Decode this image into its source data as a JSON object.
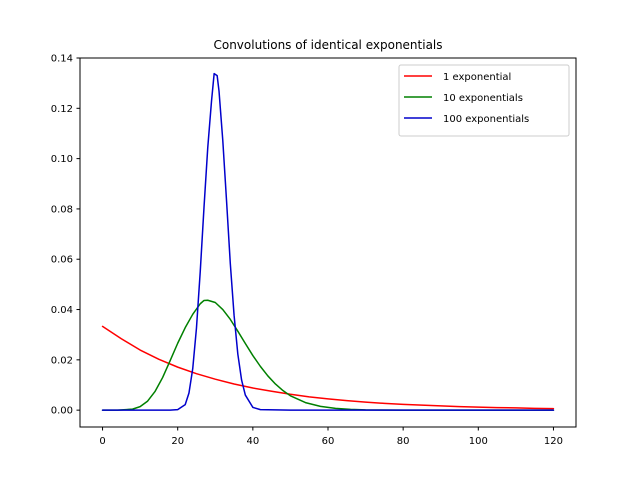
{
  "chart_data": {
    "type": "line",
    "title": "Convolutions of identical exponentials",
    "xlabel": "",
    "ylabel": "",
    "xlim": [
      -6,
      126
    ],
    "ylim": [
      -0.0067,
      0.14
    ],
    "x_ticks": [
      0,
      20,
      40,
      60,
      80,
      100,
      120
    ],
    "y_ticks": [
      0.0,
      0.02,
      0.04,
      0.06,
      0.08,
      0.1,
      0.12,
      0.14
    ],
    "x_tick_labels": [
      "0",
      "20",
      "40",
      "60",
      "80",
      "100",
      "120"
    ],
    "y_tick_labels": [
      "0.00",
      "0.02",
      "0.04",
      "0.06",
      "0.08",
      "0.10",
      "0.12",
      "0.14"
    ],
    "grid": false,
    "legend_position": "top-right",
    "series": [
      {
        "name": "1 exponential",
        "color": "#ff0000",
        "x": [
          0,
          5,
          10,
          15,
          20,
          25,
          30,
          35,
          40,
          45,
          50,
          55,
          60,
          65,
          70,
          75,
          80,
          85,
          90,
          95,
          100,
          105,
          110,
          115,
          120
        ],
        "y": [
          0.0333,
          0.0284,
          0.0239,
          0.0202,
          0.0171,
          0.0145,
          0.0123,
          0.0104,
          0.0088,
          0.0075,
          0.0063,
          0.0053,
          0.0045,
          0.0038,
          0.0032,
          0.0027,
          0.0023,
          0.002,
          0.0017,
          0.0014,
          0.0012,
          0.001,
          0.0009,
          0.0007,
          0.0006
        ]
      },
      {
        "name": "10 exponentials",
        "color": "#008000",
        "x": [
          0,
          4,
          8,
          10,
          12,
          14,
          16,
          18,
          20,
          22,
          24,
          26,
          27,
          28,
          30,
          32,
          34,
          36,
          38,
          40,
          42,
          44,
          46,
          48,
          50,
          54,
          58,
          62,
          66,
          70,
          80,
          90,
          100,
          110,
          120
        ],
        "y": [
          0.0,
          0.0,
          0.0004,
          0.0014,
          0.0036,
          0.0075,
          0.013,
          0.0197,
          0.0266,
          0.0328,
          0.0381,
          0.0423,
          0.0436,
          0.0437,
          0.0428,
          0.04,
          0.0361,
          0.0314,
          0.0265,
          0.0217,
          0.0174,
          0.0136,
          0.0104,
          0.0078,
          0.0057,
          0.003,
          0.0015,
          0.0007,
          0.0003,
          0.0001,
          0.0,
          0.0,
          0.0,
          0.0,
          0.0
        ]
      },
      {
        "name": "100 exponentials",
        "color": "#0000cc",
        "x": [
          0,
          10,
          18,
          20,
          22,
          23,
          24,
          25,
          26,
          27,
          28,
          29,
          29.7,
          30.5,
          31,
          32,
          33,
          34,
          35,
          36,
          37,
          38,
          40,
          42,
          50,
          60,
          80,
          100,
          120
        ],
        "y": [
          0.0,
          0.0,
          0.0,
          0.0002,
          0.0022,
          0.0068,
          0.0165,
          0.0327,
          0.0551,
          0.0806,
          0.1044,
          0.1229,
          0.1338,
          0.133,
          0.1268,
          0.1072,
          0.0832,
          0.0583,
          0.0378,
          0.0223,
          0.012,
          0.006,
          0.0011,
          0.0002,
          0.0,
          0.0,
          0.0,
          0.0,
          0.0
        ]
      }
    ]
  }
}
